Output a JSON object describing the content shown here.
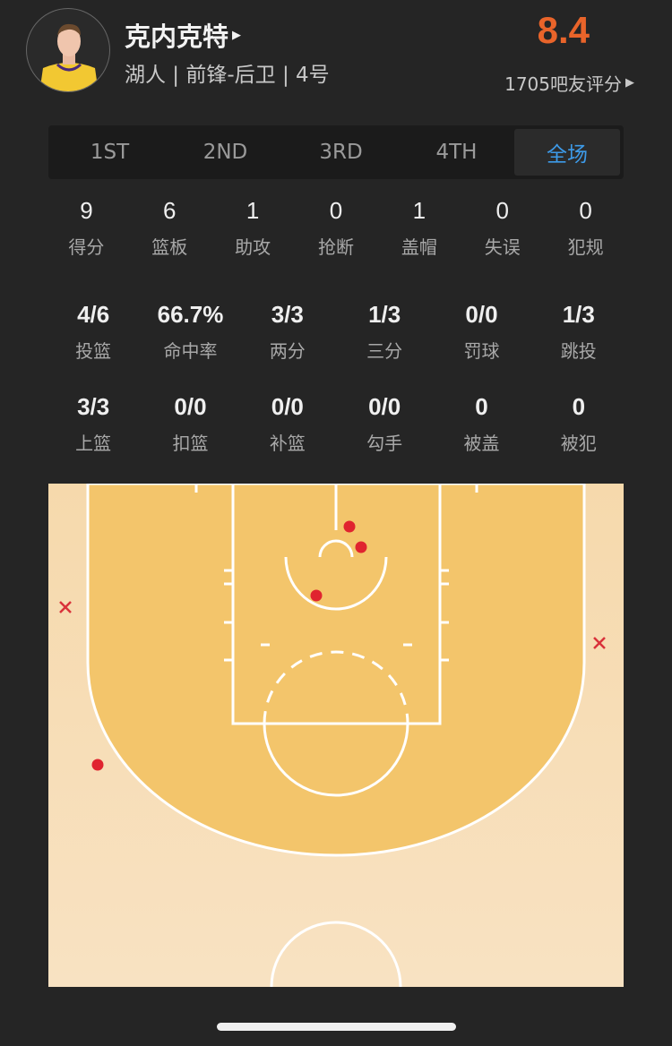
{
  "player": {
    "name": "克内克特",
    "meta": "湖人 | 前锋-后卫 | 4号",
    "rating": "8.4",
    "raters": "1705吧友评分"
  },
  "tabs": [
    {
      "label": "1ST"
    },
    {
      "label": "2ND"
    },
    {
      "label": "3RD"
    },
    {
      "label": "4TH"
    },
    {
      "label": "全场",
      "active": true
    }
  ],
  "basic": [
    {
      "v": "9",
      "l": "得分"
    },
    {
      "v": "6",
      "l": "篮板"
    },
    {
      "v": "1",
      "l": "助攻"
    },
    {
      "v": "0",
      "l": "抢断"
    },
    {
      "v": "1",
      "l": "盖帽"
    },
    {
      "v": "0",
      "l": "失误"
    },
    {
      "v": "0",
      "l": "犯规"
    }
  ],
  "shooting": [
    {
      "v": "4/6",
      "l": "投篮"
    },
    {
      "v": "66.7%",
      "l": "命中率"
    },
    {
      "v": "3/3",
      "l": "两分"
    },
    {
      "v": "1/3",
      "l": "三分"
    },
    {
      "v": "0/0",
      "l": "罚球"
    },
    {
      "v": "1/3",
      "l": "跳投"
    }
  ],
  "shot_types": [
    {
      "v": "3/3",
      "l": "上篮"
    },
    {
      "v": "0/0",
      "l": "扣篮"
    },
    {
      "v": "0/0",
      "l": "补篮"
    },
    {
      "v": "0/0",
      "l": "勾手"
    },
    {
      "v": "0",
      "l": "被盖"
    },
    {
      "v": "0",
      "l": "被犯"
    }
  ],
  "colors": {
    "accent": "#3d9ae8",
    "rating": "#e9642a",
    "made": "#e0242f",
    "miss": "#d9323a",
    "court_inner": "#f3c56b",
    "court_outer": "#f7dfb9"
  },
  "shots": [
    {
      "result": "made",
      "zone": "paint-left-of-rim"
    },
    {
      "result": "made",
      "zone": "paint-right-of-rim"
    },
    {
      "result": "made",
      "zone": "paint-restricted-edge"
    },
    {
      "result": "made",
      "zone": "left-wing-three"
    },
    {
      "result": "miss",
      "zone": "left-corner-three"
    },
    {
      "result": "miss",
      "zone": "right-corner-three"
    }
  ]
}
